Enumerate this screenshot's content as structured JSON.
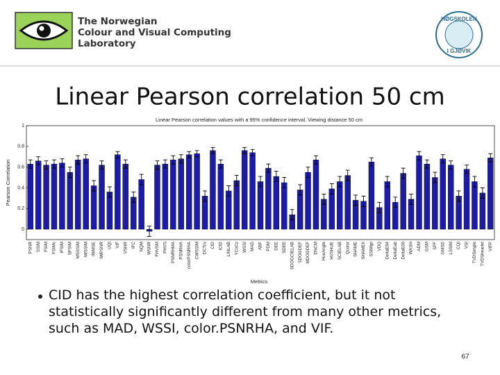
{
  "slide": {
    "lab_name": [
      "The Norwegian",
      "Colour and Visual Computing",
      "Laboratory"
    ],
    "seal_top": "HØGSKOLEN",
    "seal_bottom": "I GJØVIK",
    "title": "Linear Pearson correlation 50 cm",
    "bullet": "CID has the highest correlation coefficient, but it not statistically significantly different from many other metrics, such as MAD, WSSI, color.PSNRHA, and VIF.",
    "page_number": "67"
  },
  "chart_data": {
    "type": "bar",
    "title": "Linear Pearson correlation values with a 95% confidence interval. Viewing distance 50 cm",
    "ylabel": "Pearson Correlation",
    "xlabel": "Metrics",
    "color": "#1c1ca6",
    "categories": [
      "PSNR",
      "SSIM",
      "FSIM",
      "FSIMc",
      "IFSIM",
      "SPSIM",
      "MSSSIM",
      "IWSSIM",
      "IWMSE",
      "IWPSNR",
      "UQI",
      "VIF",
      "VSNR",
      "IFC",
      "NQM",
      "WSNR",
      "FHVSM",
      "PHVS",
      "PSNRHMA",
      "PSNRHA",
      "colorPSNRHA",
      "CWSSIM",
      "DCTcv",
      "CID",
      "ICID",
      "LINLAB",
      "YCxCz",
      "WSSI",
      "MAD",
      "ABF",
      "PDM",
      "DEE",
      "SDEE",
      "SDOGCIELAB",
      "SDOGDEF",
      "MDOGDEF",
      "DNCM",
      "HueAngle",
      "HVSHUE",
      "SCIELAB",
      "Qcolor",
      "SHAME",
      "SHAMEII",
      "SSIMipt",
      "VDQ",
      "DeltaE94",
      "DeltaEab",
      "DeltaE00",
      "WASH",
      "ADM",
      "GSM",
      "SFF",
      "GMSD",
      "LSSIM",
      "CQI",
      "VSI",
      "TVDSimple",
      "TVDShearlet",
      "VIFP"
    ],
    "values": [
      0.63,
      0.66,
      0.62,
      0.63,
      0.64,
      0.55,
      0.67,
      0.68,
      0.42,
      0.62,
      0.36,
      0.72,
      0.63,
      0.31,
      0.48,
      -0.02,
      0.62,
      0.63,
      0.67,
      0.68,
      0.72,
      0.73,
      0.32,
      0.76,
      0.63,
      0.37,
      0.47,
      0.76,
      0.74,
      0.46,
      0.59,
      0.51,
      0.45,
      0.14,
      0.38,
      0.55,
      0.67,
      0.29,
      0.39,
      0.46,
      0.52,
      0.28,
      0.27,
      0.65,
      0.21,
      0.46,
      0.26,
      0.54,
      0.29,
      0.71,
      0.63,
      0.5,
      0.68,
      0.62,
      0.32,
      0.58,
      0.46,
      0.35,
      0.69
    ],
    "errors": [
      0.04,
      0.04,
      0.04,
      0.04,
      0.04,
      0.05,
      0.04,
      0.04,
      0.05,
      0.04,
      0.05,
      0.03,
      0.04,
      0.05,
      0.05,
      0.05,
      0.04,
      0.04,
      0.04,
      0.04,
      0.03,
      0.03,
      0.05,
      0.03,
      0.04,
      0.05,
      0.05,
      0.03,
      0.03,
      0.05,
      0.04,
      0.05,
      0.05,
      0.05,
      0.05,
      0.05,
      0.04,
      0.05,
      0.05,
      0.05,
      0.05,
      0.05,
      0.05,
      0.04,
      0.05,
      0.05,
      0.05,
      0.05,
      0.05,
      0.04,
      0.04,
      0.05,
      0.04,
      0.04,
      0.05,
      0.04,
      0.05,
      0.05,
      0.04
    ],
    "ylim": [
      -0.1,
      1
    ],
    "yticks": [
      0,
      0.2,
      0.4,
      0.6,
      0.8,
      1
    ]
  }
}
